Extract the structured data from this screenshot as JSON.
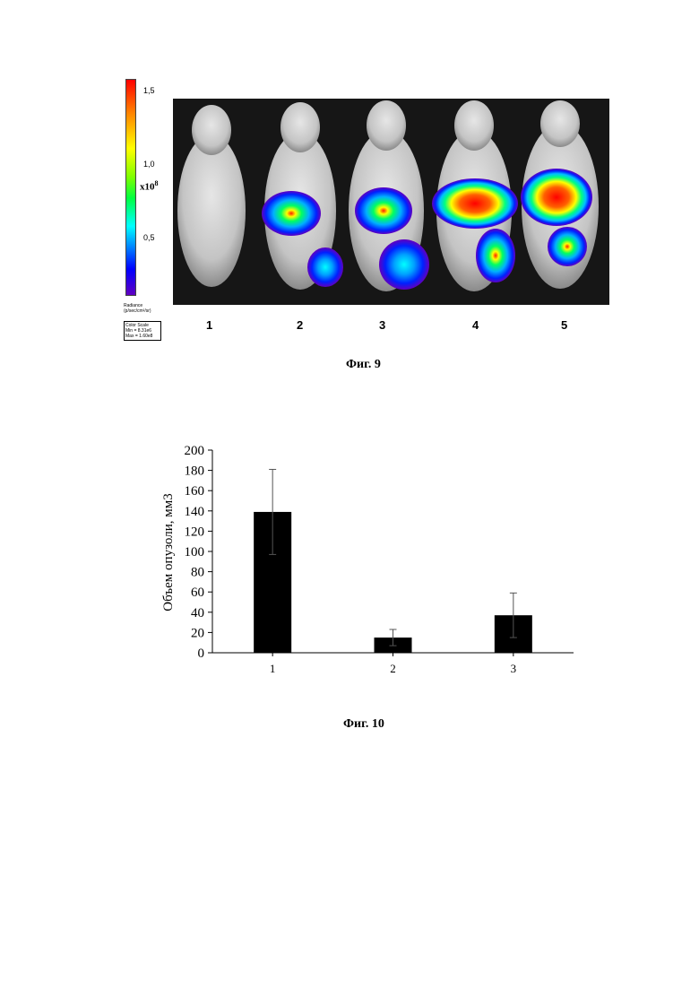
{
  "figure9": {
    "scale_ticks": [
      "1,5",
      "1,0",
      "0,5"
    ],
    "scale_unit": "x10",
    "scale_unit_exp": "8",
    "radiance_label": "Radiance\n(p/sec/cm²/sr)",
    "color_scale": {
      "title": "Color Scale",
      "min": "Min = 8.31e6",
      "max": "Max = 1.60e8"
    },
    "mouse_labels": [
      "1",
      "2",
      "3",
      "4",
      "5"
    ],
    "caption": "Фиг. 9"
  },
  "figure10": {
    "caption": "Фиг. 10"
  },
  "chart_data": {
    "type": "bar",
    "categories": [
      "1",
      "2",
      "3"
    ],
    "values": [
      139,
      15,
      37
    ],
    "error": [
      42,
      8,
      22
    ],
    "ylabel": "Объем опузоли, мм3",
    "xlabel": "",
    "ylim": [
      0,
      200
    ],
    "yticks": [
      0,
      20,
      40,
      60,
      80,
      100,
      120,
      140,
      160,
      180,
      200
    ],
    "bar_color": "#000000",
    "grid": false
  }
}
